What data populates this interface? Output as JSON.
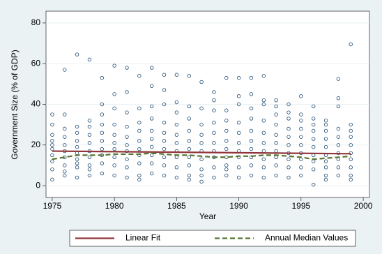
{
  "chart_data": {
    "type": "scatter",
    "xlabel": "Year",
    "ylabel": "Government Size (% of GDP)",
    "xlim": [
      1974.5,
      2000.5
    ],
    "xticks": [
      1975,
      1980,
      1985,
      1990,
      1995,
      2000
    ],
    "ylim": [
      -5.8,
      85.8
    ],
    "yticks": [
      0,
      20,
      40,
      60,
      80
    ],
    "grid": true,
    "legend_position": "bottom",
    "series": [
      {
        "color": "#1a476f",
        "marker": "hollow-circle",
        "x": [
          1975,
          1975,
          1975,
          1975,
          1975,
          1975,
          1975,
          1975,
          1975,
          1975,
          1976,
          1976,
          1976,
          1976,
          1976,
          1976,
          1976,
          1976,
          1976,
          1976,
          1977,
          1977,
          1977,
          1977,
          1977,
          1977,
          1977,
          1977,
          1977,
          1977,
          1978,
          1978,
          1978,
          1978,
          1978,
          1978,
          1978,
          1978,
          1978,
          1978,
          1979,
          1979,
          1979,
          1979,
          1979,
          1979,
          1979,
          1979,
          1979,
          1979,
          1980,
          1980,
          1980,
          1980,
          1980,
          1980,
          1980,
          1980,
          1980,
          1980,
          1981,
          1981,
          1981,
          1981,
          1981,
          1981,
          1981,
          1981,
          1981,
          1981,
          1982,
          1982,
          1982,
          1982,
          1982,
          1982,
          1982,
          1982,
          1982,
          1982,
          1983,
          1983,
          1983,
          1983,
          1983,
          1983,
          1983,
          1983,
          1983,
          1983,
          1984,
          1984,
          1984,
          1984,
          1984,
          1984,
          1984,
          1984,
          1984,
          1984,
          1985,
          1985,
          1985,
          1985,
          1985,
          1985,
          1985,
          1985,
          1985,
          1985,
          1986,
          1986,
          1986,
          1986,
          1986,
          1986,
          1986,
          1986,
          1986,
          1986,
          1987,
          1987,
          1987,
          1987,
          1987,
          1987,
          1987,
          1987,
          1987,
          1987,
          1988,
          1988,
          1988,
          1988,
          1988,
          1988,
          1988,
          1988,
          1988,
          1988,
          1989,
          1989,
          1989,
          1989,
          1989,
          1989,
          1989,
          1989,
          1989,
          1989,
          1990,
          1990,
          1990,
          1990,
          1990,
          1990,
          1990,
          1990,
          1990,
          1990,
          1991,
          1991,
          1991,
          1991,
          1991,
          1991,
          1991,
          1991,
          1991,
          1991,
          1992,
          1992,
          1992,
          1992,
          1992,
          1992,
          1992,
          1992,
          1992,
          1992,
          1993,
          1993,
          1993,
          1993,
          1993,
          1993,
          1993,
          1993,
          1993,
          1993,
          1994,
          1994,
          1994,
          1994,
          1994,
          1994,
          1994,
          1994,
          1994,
          1994,
          1995,
          1995,
          1995,
          1995,
          1995,
          1995,
          1995,
          1995,
          1995,
          1995,
          1996,
          1996,
          1996,
          1996,
          1996,
          1996,
          1996,
          1996,
          1996,
          1996,
          1997,
          1997,
          1997,
          1997,
          1997,
          1997,
          1997,
          1997,
          1997,
          1997,
          1998,
          1998,
          1998,
          1998,
          1998,
          1998,
          1998,
          1998,
          1998,
          1998,
          1999,
          1999,
          1999,
          1999,
          1999,
          1999,
          1999,
          1999,
          1999,
          1999
        ],
        "values": [
          3,
          8,
          12,
          15,
          18,
          20,
          22,
          25,
          30,
          35,
          5,
          10,
          14,
          17,
          20,
          24,
          28,
          35,
          57,
          7,
          4,
          9,
          13,
          16,
          19,
          22,
          26,
          29,
          64.5,
          11,
          5,
          10,
          14,
          17,
          21,
          25,
          29,
          32,
          62,
          8,
          6,
          11,
          15,
          18,
          22,
          26,
          30,
          40,
          53,
          35,
          5,
          10,
          14,
          18,
          21,
          25,
          30,
          38,
          45,
          59,
          4,
          9,
          13,
          17,
          20,
          24,
          29,
          36,
          46,
          58,
          5,
          11,
          15,
          18,
          22,
          27,
          31,
          38,
          54,
          3,
          6,
          11,
          15,
          19,
          23,
          27,
          33,
          39,
          49,
          58,
          5,
          10,
          14,
          18,
          22,
          26,
          31,
          40,
          47,
          54.5,
          4,
          9,
          14,
          17,
          21,
          25,
          30,
          36,
          41,
          54.5,
          5,
          10,
          14,
          18,
          22,
          27,
          33,
          39,
          54,
          3,
          2,
          8,
          13,
          17,
          21,
          25,
          30,
          38,
          51,
          5,
          4,
          9,
          14,
          17,
          21,
          26,
          31,
          37,
          42,
          46,
          5,
          10,
          14,
          18,
          22,
          27,
          32,
          37,
          53,
          8,
          4,
          9,
          14,
          17,
          21,
          26,
          31,
          40,
          44,
          53,
          5,
          10,
          14,
          18,
          22,
          27,
          33,
          38,
          45,
          53,
          4,
          9,
          13,
          17,
          21,
          26,
          32,
          40,
          42,
          54,
          5,
          10,
          14,
          17,
          21,
          25,
          30,
          35,
          39,
          42,
          4,
          9,
          13,
          16,
          20,
          24,
          28,
          33,
          36,
          40,
          5,
          9,
          13,
          16,
          20,
          24,
          28,
          32,
          35,
          44,
          0.5,
          8,
          12,
          15,
          19,
          23,
          27,
          30,
          33,
          39,
          5,
          9,
          12,
          15,
          19,
          23,
          27,
          30,
          32,
          3,
          5,
          9,
          13,
          16,
          20,
          24,
          28,
          39,
          43,
          52.5,
          5,
          9,
          13,
          16,
          20,
          24,
          27,
          30,
          69.5,
          3
        ]
      },
      {
        "name": "Linear Fit",
        "color": "#90353b",
        "marker": "line",
        "x": [
          1975,
          1999
        ],
        "values": [
          17,
          15.7
        ]
      },
      {
        "name": "Annual Median Values",
        "color": "#55752f",
        "marker": "dashed-line",
        "x": [
          1975,
          1976,
          1977,
          1978,
          1979,
          1980,
          1981,
          1982,
          1983,
          1984,
          1985,
          1986,
          1987,
          1988,
          1989,
          1990,
          1991,
          1992,
          1993,
          1994,
          1995,
          1996,
          1997,
          1998,
          1999
        ],
        "values": [
          13,
          14,
          15,
          15,
          15,
          15.5,
          15.5,
          15.5,
          16,
          15.5,
          15,
          15,
          14.5,
          14,
          14,
          14.5,
          14.5,
          15,
          15,
          14.5,
          14,
          13,
          13.5,
          14,
          14.5
        ]
      }
    ]
  }
}
